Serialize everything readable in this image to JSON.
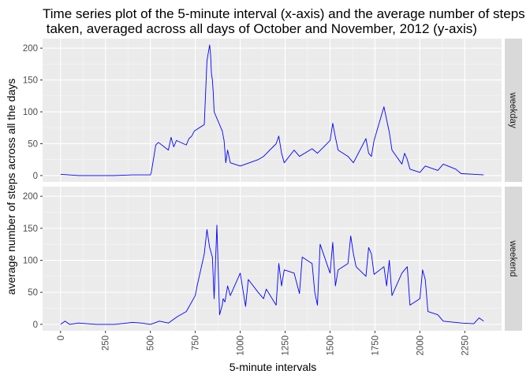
{
  "chart_data": {
    "type": "line",
    "title_line1": "Time series plot of the 5-minute interval (x-axis) and the average number of steps",
    "title_line2": " taken, averaged across all days of October and November, 2012 (y-axis)",
    "xlabel": "5-minute intervals",
    "ylabel": "average number of steps across all the days",
    "xlim": [
      -100,
      2455
    ],
    "ylim": [
      -10,
      215
    ],
    "x_ticks": [
      0,
      250,
      500,
      750,
      1000,
      1250,
      1500,
      1750,
      2000,
      2250
    ],
    "y_ticks": [
      0,
      50,
      100,
      150,
      200
    ],
    "grid": true,
    "line_color": "#0000ff",
    "panel_background": "#ebebeb",
    "strip_background": "#d9d9d9",
    "facets": [
      {
        "label": "weekday",
        "x": [
          0,
          100,
          200,
          300,
          400,
          500,
          505,
          520,
          530,
          545,
          600,
          615,
          630,
          645,
          700,
          715,
          730,
          745,
          800,
          815,
          830,
          835,
          840,
          845,
          850,
          855,
          900,
          910,
          920,
          930,
          945,
          1000,
          1030,
          1100,
          1130,
          1200,
          1215,
          1230,
          1245,
          1300,
          1330,
          1400,
          1430,
          1500,
          1515,
          1530,
          1545,
          1600,
          1630,
          1700,
          1715,
          1730,
          1745,
          1800,
          1830,
          1845,
          1900,
          1915,
          1930,
          1945,
          2000,
          2030,
          2100,
          2130,
          2200,
          2230,
          2300,
          2355
        ],
        "y": [
          2,
          0,
          0,
          0,
          1,
          1,
          5,
          30,
          48,
          52,
          40,
          60,
          45,
          55,
          48,
          58,
          62,
          70,
          80,
          180,
          205,
          190,
          160,
          150,
          130,
          100,
          70,
          55,
          20,
          40,
          20,
          15,
          18,
          25,
          30,
          50,
          62,
          35,
          20,
          40,
          30,
          42,
          35,
          55,
          82,
          60,
          40,
          30,
          20,
          58,
          35,
          30,
          55,
          108,
          68,
          40,
          18,
          35,
          25,
          10,
          5,
          15,
          8,
          18,
          10,
          3,
          2,
          1
        ]
      },
      {
        "label": "weekend",
        "x": [
          0,
          25,
          50,
          100,
          200,
          300,
          400,
          450,
          500,
          550,
          600,
          650,
          700,
          750,
          760,
          780,
          800,
          815,
          830,
          845,
          855,
          870,
          885,
          900,
          905,
          915,
          930,
          945,
          1000,
          1030,
          1045,
          1100,
          1130,
          1145,
          1200,
          1215,
          1230,
          1245,
          1300,
          1330,
          1345,
          1400,
          1415,
          1430,
          1445,
          1500,
          1515,
          1530,
          1545,
          1600,
          1615,
          1630,
          1645,
          1700,
          1715,
          1730,
          1745,
          1800,
          1815,
          1830,
          1845,
          1900,
          1915,
          1930,
          1945,
          2000,
          2015,
          2030,
          2045,
          2100,
          2130,
          2200,
          2230,
          2300,
          2330,
          2355
        ],
        "y": [
          0,
          5,
          0,
          2,
          0,
          0,
          3,
          2,
          0,
          5,
          2,
          12,
          20,
          45,
          60,
          85,
          110,
          148,
          120,
          105,
          40,
          155,
          15,
          30,
          40,
          35,
          60,
          45,
          80,
          28,
          70,
          50,
          40,
          55,
          30,
          95,
          60,
          85,
          80,
          48,
          105,
          95,
          50,
          30,
          125,
          80,
          128,
          60,
          85,
          95,
          138,
          110,
          90,
          75,
          120,
          110,
          78,
          90,
          60,
          100,
          45,
          80,
          85,
          90,
          30,
          40,
          85,
          70,
          20,
          15,
          5,
          3,
          2,
          1,
          10,
          5
        ]
      }
    ]
  }
}
